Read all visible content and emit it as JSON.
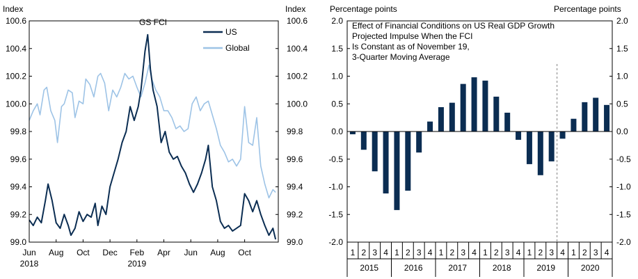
{
  "chart_data": [
    {
      "type": "line",
      "title": "GS FCI",
      "left_axis_label": "Index",
      "right_axis_label": "Index",
      "ylim": [
        99.0,
        100.6
      ],
      "yticks": [
        "100.6",
        "100.4",
        "100.2",
        "100.0",
        "99.8",
        "99.6",
        "99.4",
        "99.2",
        "99.0"
      ],
      "xlim": [
        0,
        18.5
      ],
      "x_ticks": [
        {
          "month": "Jun",
          "year": "2018"
        },
        {
          "month": "Aug",
          "year": ""
        },
        {
          "month": "Oct",
          "year": ""
        },
        {
          "month": "Dec",
          "year": ""
        },
        {
          "month": "Feb",
          "year": "2019"
        },
        {
          "month": "Apr",
          "year": ""
        },
        {
          "month": "Jun",
          "year": ""
        },
        {
          "month": "Aug",
          "year": ""
        },
        {
          "month": "Oct",
          "year": ""
        }
      ],
      "legend": [
        "US",
        "Global"
      ],
      "series": [
        {
          "name": "US",
          "color": "#0b2d52",
          "points": [
            [
              0,
              99.16
            ],
            [
              0.3,
              99.12
            ],
            [
              0.6,
              99.18
            ],
            [
              0.9,
              99.14
            ],
            [
              1.2,
              99.3
            ],
            [
              1.4,
              99.42
            ],
            [
              1.7,
              99.3
            ],
            [
              2,
              99.14
            ],
            [
              2.3,
              99.1
            ],
            [
              2.6,
              99.2
            ],
            [
              2.9,
              99.12
            ],
            [
              3.1,
              99.05
            ],
            [
              3.4,
              99.1
            ],
            [
              3.7,
              99.22
            ],
            [
              4,
              99.15
            ],
            [
              4.3,
              99.2
            ],
            [
              4.6,
              99.18
            ],
            [
              4.9,
              99.28
            ],
            [
              5.1,
              99.12
            ],
            [
              5.4,
              99.26
            ],
            [
              5.7,
              99.2
            ],
            [
              6,
              99.4
            ],
            [
              6.3,
              99.5
            ],
            [
              6.6,
              99.6
            ],
            [
              6.9,
              99.72
            ],
            [
              7.2,
              99.8
            ],
            [
              7.5,
              99.98
            ],
            [
              7.8,
              99.88
            ],
            [
              8.1,
              99.98
            ],
            [
              8.3,
              100.1
            ],
            [
              8.6,
              100.38
            ],
            [
              8.8,
              100.5
            ],
            [
              9,
              100.25
            ],
            [
              9.2,
              100.1
            ],
            [
              9.5,
              99.98
            ],
            [
              9.8,
              99.72
            ],
            [
              10.1,
              99.8
            ],
            [
              10.4,
              99.65
            ],
            [
              10.7,
              99.6
            ],
            [
              11,
              99.62
            ],
            [
              11.3,
              99.55
            ],
            [
              11.6,
              99.5
            ],
            [
              11.9,
              99.42
            ],
            [
              12.2,
              99.36
            ],
            [
              12.5,
              99.42
            ],
            [
              12.8,
              99.5
            ],
            [
              13.1,
              99.6
            ],
            [
              13.3,
              99.7
            ],
            [
              13.6,
              99.4
            ],
            [
              13.9,
              99.3
            ],
            [
              14.2,
              99.15
            ],
            [
              14.5,
              99.1
            ],
            [
              14.8,
              99.12
            ],
            [
              15.1,
              99.08
            ],
            [
              15.4,
              99.1
            ],
            [
              15.7,
              99.12
            ],
            [
              16,
              99.35
            ],
            [
              16.3,
              99.3
            ],
            [
              16.6,
              99.22
            ],
            [
              16.9,
              99.3
            ],
            [
              17.2,
              99.2
            ],
            [
              17.5,
              99.12
            ],
            [
              17.8,
              99.05
            ],
            [
              18.1,
              99.1
            ],
            [
              18.3,
              99.02
            ]
          ]
        },
        {
          "name": "Global",
          "color": "#9dc3e6",
          "points": [
            [
              0,
              99.88
            ],
            [
              0.3,
              99.95
            ],
            [
              0.6,
              100.0
            ],
            [
              0.8,
              99.92
            ],
            [
              1.1,
              100.1
            ],
            [
              1.3,
              100.12
            ],
            [
              1.6,
              99.95
            ],
            [
              1.9,
              99.88
            ],
            [
              2.1,
              99.72
            ],
            [
              2.4,
              99.98
            ],
            [
              2.6,
              100.0
            ],
            [
              2.9,
              100.1
            ],
            [
              3.2,
              100.08
            ],
            [
              3.4,
              99.9
            ],
            [
              3.7,
              100.02
            ],
            [
              4,
              100.0
            ],
            [
              4.2,
              100.18
            ],
            [
              4.5,
              100.14
            ],
            [
              4.8,
              100.05
            ],
            [
              5.1,
              100.2
            ],
            [
              5.3,
              100.22
            ],
            [
              5.6,
              100.15
            ],
            [
              5.9,
              99.95
            ],
            [
              6.2,
              100.1
            ],
            [
              6.5,
              100.05
            ],
            [
              6.8,
              100.12
            ],
            [
              7.1,
              100.22
            ],
            [
              7.4,
              100.18
            ],
            [
              7.7,
              100.2
            ],
            [
              8,
              100.12
            ],
            [
              8.3,
              100.05
            ],
            [
              8.6,
              100.15
            ],
            [
              8.9,
              100.28
            ],
            [
              9.1,
              100.18
            ],
            [
              9.4,
              100.1
            ],
            [
              9.7,
              100.05
            ],
            [
              10,
              99.95
            ],
            [
              10.3,
              99.95
            ],
            [
              10.6,
              99.9
            ],
            [
              10.9,
              99.82
            ],
            [
              11.2,
              99.84
            ],
            [
              11.5,
              99.8
            ],
            [
              11.8,
              99.82
            ],
            [
              12.1,
              100.0
            ],
            [
              12.4,
              100.05
            ],
            [
              12.7,
              99.95
            ],
            [
              13,
              100.0
            ],
            [
              13.3,
              100.02
            ],
            [
              13.6,
              99.92
            ],
            [
              13.9,
              99.82
            ],
            [
              14.2,
              99.7
            ],
            [
              14.5,
              99.65
            ],
            [
              14.8,
              99.58
            ],
            [
              15.1,
              99.6
            ],
            [
              15.4,
              99.55
            ],
            [
              15.7,
              99.6
            ],
            [
              16,
              99.98
            ],
            [
              16.3,
              99.72
            ],
            [
              16.6,
              99.7
            ],
            [
              16.9,
              99.9
            ],
            [
              17.2,
              99.55
            ],
            [
              17.5,
              99.42
            ],
            [
              17.8,
              99.32
            ],
            [
              18.1,
              99.38
            ],
            [
              18.3,
              99.36
            ]
          ]
        }
      ]
    },
    {
      "type": "bar",
      "title": "Effect of Financial Conditions on US Real GDP Growth Projected Impulse When the FCI Is Constant as of November  19, 3-Quarter Moving Average",
      "title_lines": [
        "Effect of Financial Conditions on US Real GDP Growth",
        "Projected Impulse When the FCI",
        "Is Constant as of November  19,",
        "3-Quarter Moving Average"
      ],
      "left_axis_label": "Percentage points",
      "right_axis_label": "Percentage points",
      "ylim": [
        -2.0,
        2.0
      ],
      "yticks": [
        "2.0",
        "1.5",
        "1.0",
        "0.5",
        "0.0",
        "-0.5",
        "-1.0",
        "-1.5",
        "-2.0"
      ],
      "color": "#0b2d52",
      "quarters": [
        "1",
        "2",
        "3",
        "4",
        "1",
        "2",
        "3",
        "4",
        "1",
        "2",
        "3",
        "4",
        "1",
        "2",
        "3",
        "4",
        "1",
        "2",
        "3",
        "4",
        "1",
        "2",
        "3",
        "4"
      ],
      "years": [
        "2015",
        "2016",
        "2017",
        "2018",
        "2019",
        "2020"
      ],
      "values": [
        -0.05,
        -0.33,
        -0.72,
        -1.12,
        -1.42,
        -1.07,
        -0.38,
        0.18,
        0.44,
        0.52,
        0.86,
        0.98,
        0.92,
        0.63,
        0.34,
        -0.15,
        -0.59,
        -0.79,
        -0.54,
        -0.13,
        0.23,
        0.53,
        0.61,
        0.48
      ],
      "projection_marker": "after 2019 Q3"
    }
  ]
}
